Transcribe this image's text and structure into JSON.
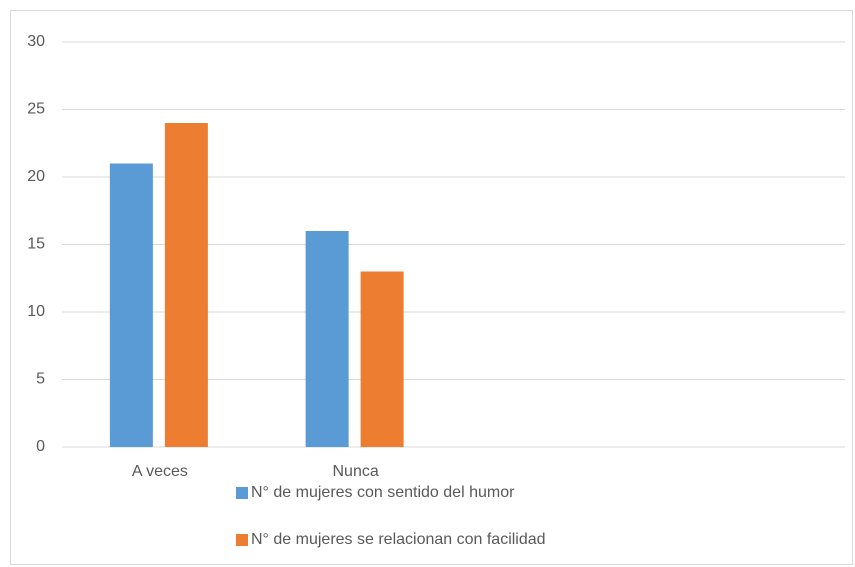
{
  "chart_data": {
    "type": "bar",
    "categories": [
      "A veces",
      "Nunca",
      null,
      null
    ],
    "series": [
      {
        "name": "N° de mujeres con sentido del humor",
        "color": "#5b9bd5",
        "values": [
          21,
          16,
          null,
          null
        ]
      },
      {
        "name": "N° de mujeres se relacionan con facilidad",
        "color": "#ed7d31",
        "values": [
          24,
          13,
          null,
          null
        ]
      }
    ],
    "ylim": [
      0,
      30
    ],
    "yticks": [
      0,
      5,
      10,
      15,
      20,
      25,
      30
    ],
    "grid": true
  }
}
